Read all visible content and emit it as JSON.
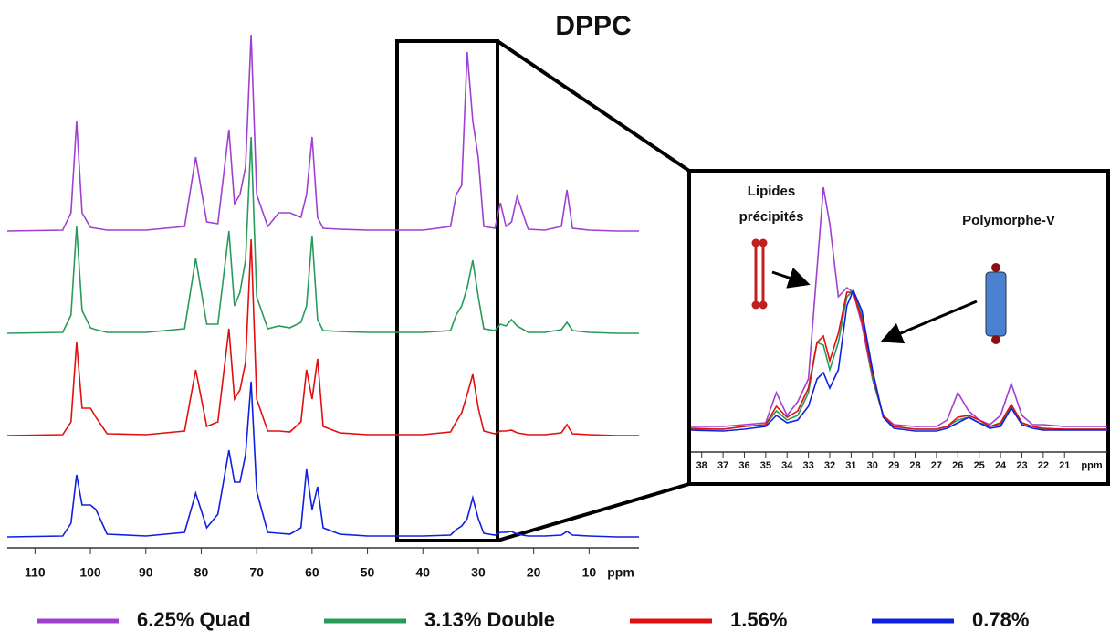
{
  "chart_data": [
    {
      "type": "line",
      "title": "DPPC",
      "x_label": "ppm",
      "x": [
        115,
        105,
        103.5,
        102.5,
        101.5,
        100,
        99,
        97,
        90,
        83,
        81,
        79,
        77,
        75,
        74,
        73,
        72,
        71,
        70,
        68,
        66,
        64,
        62,
        61,
        60,
        59,
        58,
        55,
        50,
        45,
        40,
        35,
        34,
        33,
        32,
        31,
        30,
        29,
        27,
        26,
        25,
        24,
        23,
        21,
        18,
        15,
        14,
        13,
        10,
        5,
        1
      ],
      "xlim": [
        115,
        1
      ],
      "xticks": [
        110,
        100,
        90,
        80,
        70,
        60,
        50,
        40,
        30,
        20,
        10
      ],
      "series": [
        {
          "name": "6.25% Quad",
          "color": "#a040d0",
          "values": [
            0,
            1,
            20,
            120,
            20,
            4,
            3,
            1,
            1,
            5,
            81,
            10,
            8,
            111,
            30,
            40,
            70,
            215,
            40,
            5,
            20,
            20,
            15,
            40,
            103,
            15,
            3,
            2,
            1,
            1,
            1,
            5,
            40,
            50,
            196,
            121,
            80,
            5,
            3,
            31,
            5,
            10,
            38,
            2,
            1,
            5,
            45,
            3,
            1,
            0,
            0
          ]
        },
        {
          "name": "3.13% Double",
          "color": "#2a9a5a",
          "values": [
            0,
            1,
            20,
            117,
            25,
            6,
            4,
            1,
            1,
            5,
            82,
            10,
            10,
            112,
            30,
            45,
            80,
            215,
            40,
            5,
            8,
            6,
            12,
            30,
            107,
            15,
            3,
            2,
            1,
            1,
            1,
            3,
            20,
            30,
            50,
            80,
            40,
            5,
            3,
            10,
            8,
            15,
            8,
            1,
            1,
            4,
            12,
            3,
            1,
            0,
            0
          ]
        },
        {
          "name": "1.56%",
          "color": "#e01010",
          "values": [
            0,
            1,
            15,
            102,
            30,
            30,
            20,
            2,
            1,
            5,
            72,
            10,
            15,
            117,
            40,
            50,
            80,
            215,
            40,
            5,
            5,
            4,
            15,
            72,
            40,
            84,
            10,
            3,
            1,
            1,
            1,
            4,
            15,
            25,
            45,
            67,
            30,
            5,
            2,
            5,
            5,
            6,
            3,
            1,
            1,
            3,
            12,
            2,
            1,
            0,
            0
          ]
        },
        {
          "name": "0.78%",
          "color": "#1020e0",
          "values": [
            0,
            1,
            15,
            68,
            35,
            35,
            30,
            3,
            1,
            5,
            48,
            10,
            25,
            95,
            60,
            60,
            90,
            170,
            50,
            5,
            4,
            3,
            10,
            74,
            30,
            55,
            10,
            3,
            1,
            1,
            1,
            2,
            8,
            12,
            20,
            43,
            20,
            4,
            2,
            5,
            5,
            6,
            3,
            1,
            1,
            2,
            6,
            2,
            1,
            0,
            0
          ]
        }
      ]
    },
    {
      "type": "line",
      "x_label": "ppm",
      "annotations": [
        "Lipides",
        "précipités",
        "Polymorphe-V"
      ],
      "x": [
        38.5,
        37,
        36,
        35,
        34.5,
        34,
        33.5,
        33,
        32.6,
        32.3,
        32,
        31.6,
        31.2,
        30.9,
        30.5,
        30,
        29.5,
        29,
        28,
        27,
        26.5,
        26,
        25.5,
        25,
        24.5,
        24,
        23.5,
        23,
        22.5,
        22,
        21,
        20,
        19
      ],
      "xlim": [
        38.5,
        19
      ],
      "xticks": [
        38,
        37,
        36,
        35,
        34,
        33,
        32,
        31,
        30,
        29,
        28,
        27,
        26,
        25,
        24,
        23,
        22,
        21
      ],
      "series": [
        {
          "color": "#a040d0",
          "values": [
            8,
            8,
            10,
            12,
            45,
            20,
            35,
            60,
            180,
            270,
            230,
            150,
            160,
            155,
            120,
            60,
            20,
            10,
            8,
            8,
            15,
            45,
            25,
            15,
            10,
            20,
            55,
            20,
            10,
            10,
            8,
            8,
            8
          ]
        },
        {
          "color": "#2a9a5a",
          "values": [
            5,
            5,
            8,
            10,
            25,
            15,
            20,
            45,
            100,
            97,
            70,
            100,
            150,
            157,
            130,
            60,
            20,
            8,
            5,
            5,
            8,
            15,
            18,
            12,
            8,
            10,
            30,
            12,
            8,
            5,
            5,
            5,
            5
          ]
        },
        {
          "color": "#e01010",
          "values": [
            6,
            5,
            8,
            10,
            30,
            18,
            25,
            50,
            100,
            107,
            80,
            110,
            155,
            155,
            125,
            65,
            20,
            8,
            5,
            5,
            8,
            18,
            20,
            15,
            8,
            12,
            32,
            12,
            8,
            6,
            5,
            5,
            5
          ]
        },
        {
          "color": "#1020e0",
          "values": [
            4,
            3,
            5,
            8,
            20,
            12,
            15,
            30,
            60,
            67,
            50,
            70,
            140,
            157,
            135,
            70,
            18,
            6,
            3,
            3,
            6,
            12,
            18,
            12,
            6,
            8,
            28,
            10,
            6,
            4,
            4,
            4,
            4
          ]
        }
      ]
    }
  ]
}
